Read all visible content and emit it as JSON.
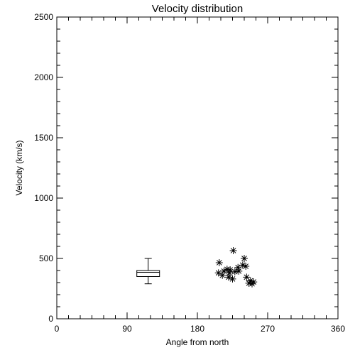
{
  "chart_data": {
    "type": "scatter",
    "title": "Velocity distribution",
    "xlabel": "Angle from north",
    "ylabel": "Velocity (km/s)",
    "xlim": [
      0,
      360
    ],
    "ylim": [
      0,
      2500
    ],
    "x_ticks": [
      "0",
      "90",
      "180",
      "270",
      "360"
    ],
    "y_ticks": [
      "0",
      "500",
      "1000",
      "1500",
      "2000",
      "2500"
    ],
    "x_tick_values": [
      0,
      90,
      180,
      270,
      360
    ],
    "y_tick_values": [
      0,
      500,
      1000,
      1500,
      2000,
      2500
    ],
    "grid": false,
    "marker": "asterisk",
    "boxplot": {
      "x": 117,
      "whisker_low": 290,
      "q1": 350,
      "median": 385,
      "q3": 400,
      "whisker_high": 500
    },
    "points": [
      {
        "x": 226,
        "y": 565
      },
      {
        "x": 240,
        "y": 500
      },
      {
        "x": 208,
        "y": 465
      },
      {
        "x": 238,
        "y": 445
      },
      {
        "x": 232,
        "y": 425
      },
      {
        "x": 242,
        "y": 435
      },
      {
        "x": 218,
        "y": 410
      },
      {
        "x": 222,
        "y": 405
      },
      {
        "x": 214,
        "y": 395
      },
      {
        "x": 233,
        "y": 395
      },
      {
        "x": 207,
        "y": 380
      },
      {
        "x": 221,
        "y": 380
      },
      {
        "x": 228,
        "y": 390
      },
      {
        "x": 212,
        "y": 360
      },
      {
        "x": 220,
        "y": 345
      },
      {
        "x": 225,
        "y": 330
      },
      {
        "x": 243,
        "y": 345
      },
      {
        "x": 248,
        "y": 315
      },
      {
        "x": 252,
        "y": 305
      },
      {
        "x": 246,
        "y": 295
      },
      {
        "x": 250,
        "y": 290
      }
    ]
  }
}
